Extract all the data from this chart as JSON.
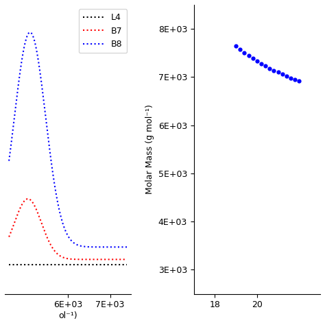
{
  "left_panel": {
    "xlim": [
      4500,
      7500
    ],
    "ylim": [
      -0.05,
      1.0
    ],
    "x_ticks": [
      6000,
      7000
    ],
    "x_tick_labels": [
      "6E+03",
      "7E+03"
    ],
    "legend_labels": [
      "L4",
      "B7",
      "B8"
    ],
    "legend_colors": [
      "black",
      "red",
      "blue"
    ],
    "L4_color": "black",
    "B7_color": "red",
    "B8_color": "blue",
    "xlabel_partial": "ol⁻¹)"
  },
  "right_panel": {
    "ylabel": "Molar Mass (g mol⁻¹)",
    "xlim": [
      17,
      23
    ],
    "ylim": [
      2500,
      8500
    ],
    "x_ticks": [
      18,
      20
    ],
    "y_ticks": [
      3000,
      4000,
      5000,
      6000,
      7000,
      8000
    ],
    "y_tick_labels": [
      "3E+03",
      "4E+03",
      "5E+03",
      "6E+03",
      "7E+03",
      "8E+03"
    ],
    "dot_color": "blue",
    "dot_x": [
      19.0,
      19.2,
      19.4,
      19.6,
      19.8,
      20.0,
      20.2,
      20.4,
      20.6,
      20.8,
      21.0,
      21.2,
      21.4,
      21.6,
      21.8,
      22.0
    ],
    "dot_y": [
      7650,
      7580,
      7510,
      7450,
      7390,
      7330,
      7280,
      7230,
      7180,
      7140,
      7100,
      7060,
      7020,
      6980,
      6950,
      6920
    ]
  },
  "background_color": "#ffffff",
  "font_size": 9
}
